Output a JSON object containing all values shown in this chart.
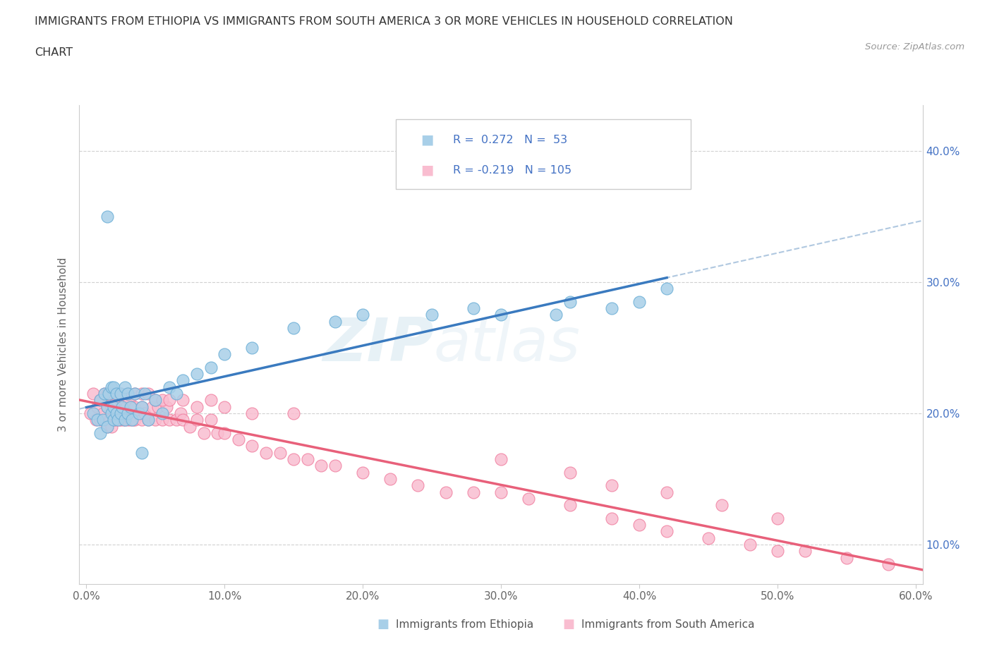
{
  "title_line1": "IMMIGRANTS FROM ETHIOPIA VS IMMIGRANTS FROM SOUTH AMERICA 3 OR MORE VEHICLES IN HOUSEHOLD CORRELATION",
  "title_line2": "CHART",
  "source_text": "Source: ZipAtlas.com",
  "ylabel": "3 or more Vehicles in Household",
  "xlim": [
    -0.005,
    0.605
  ],
  "ylim": [
    0.07,
    0.435
  ],
  "xticks": [
    0.0,
    0.1,
    0.2,
    0.3,
    0.4,
    0.5,
    0.6
  ],
  "xticklabels": [
    "0.0%",
    "10.0%",
    "20.0%",
    "30.0%",
    "40.0%",
    "50.0%",
    "60.0%"
  ],
  "yticks": [
    0.1,
    0.2,
    0.3,
    0.4
  ],
  "yticklabels": [
    "10.0%",
    "20.0%",
    "30.0%",
    "40.0%"
  ],
  "ethiopia_color": "#a8cfe8",
  "ethiopia_edge": "#6aaed6",
  "south_america_color": "#f9bdd0",
  "south_america_edge": "#f07fa0",
  "legend_R_ethiopia": "0.272",
  "legend_N_ethiopia": "53",
  "legend_R_south_america": "-0.219",
  "legend_N_south_america": "105",
  "trend_ethiopia_color": "#3a7abf",
  "trend_south_america_color": "#e8607a",
  "trend_ethiopia_dashed_color": "#a0bcd8",
  "watermark_zip": "ZIP",
  "watermark_atlas": "atlas",
  "legend_label_ethiopia": "Immigrants from Ethiopia",
  "legend_label_south_america": "Immigrants from South America",
  "ethiopia_x": [
    0.005,
    0.008,
    0.01,
    0.01,
    0.012,
    0.013,
    0.015,
    0.015,
    0.016,
    0.018,
    0.018,
    0.02,
    0.02,
    0.02,
    0.022,
    0.022,
    0.023,
    0.025,
    0.025,
    0.026,
    0.028,
    0.028,
    0.03,
    0.03,
    0.032,
    0.033,
    0.035,
    0.038,
    0.04,
    0.042,
    0.045,
    0.05,
    0.055,
    0.06,
    0.065,
    0.07,
    0.08,
    0.09,
    0.1,
    0.12,
    0.15,
    0.18,
    0.2,
    0.25,
    0.28,
    0.3,
    0.35,
    0.38,
    0.4,
    0.42,
    0.04,
    0.015,
    0.34
  ],
  "ethiopia_y": [
    0.2,
    0.195,
    0.21,
    0.185,
    0.195,
    0.215,
    0.205,
    0.19,
    0.215,
    0.2,
    0.22,
    0.195,
    0.205,
    0.22,
    0.2,
    0.215,
    0.195,
    0.2,
    0.215,
    0.205,
    0.195,
    0.22,
    0.2,
    0.215,
    0.205,
    0.195,
    0.215,
    0.2,
    0.205,
    0.215,
    0.195,
    0.21,
    0.2,
    0.22,
    0.215,
    0.225,
    0.23,
    0.235,
    0.245,
    0.25,
    0.265,
    0.27,
    0.275,
    0.275,
    0.28,
    0.275,
    0.285,
    0.28,
    0.285,
    0.295,
    0.17,
    0.35,
    0.275
  ],
  "south_america_x": [
    0.003,
    0.005,
    0.007,
    0.008,
    0.01,
    0.01,
    0.012,
    0.013,
    0.014,
    0.015,
    0.015,
    0.016,
    0.017,
    0.018,
    0.018,
    0.019,
    0.02,
    0.02,
    0.021,
    0.022,
    0.022,
    0.023,
    0.024,
    0.025,
    0.025,
    0.026,
    0.027,
    0.028,
    0.028,
    0.029,
    0.03,
    0.03,
    0.031,
    0.032,
    0.033,
    0.034,
    0.035,
    0.035,
    0.038,
    0.04,
    0.04,
    0.042,
    0.045,
    0.048,
    0.05,
    0.052,
    0.055,
    0.058,
    0.06,
    0.065,
    0.068,
    0.07,
    0.075,
    0.08,
    0.085,
    0.09,
    0.095,
    0.1,
    0.11,
    0.12,
    0.13,
    0.14,
    0.15,
    0.16,
    0.17,
    0.18,
    0.2,
    0.22,
    0.24,
    0.26,
    0.28,
    0.3,
    0.32,
    0.35,
    0.38,
    0.4,
    0.42,
    0.45,
    0.48,
    0.5,
    0.52,
    0.55,
    0.58,
    0.015,
    0.02,
    0.025,
    0.03,
    0.035,
    0.04,
    0.045,
    0.05,
    0.055,
    0.06,
    0.07,
    0.08,
    0.09,
    0.1,
    0.12,
    0.15,
    0.3,
    0.35,
    0.38,
    0.42,
    0.46,
    0.5
  ],
  "south_america_y": [
    0.2,
    0.215,
    0.195,
    0.205,
    0.21,
    0.195,
    0.2,
    0.215,
    0.195,
    0.205,
    0.19,
    0.21,
    0.195,
    0.205,
    0.19,
    0.21,
    0.195,
    0.205,
    0.2,
    0.195,
    0.21,
    0.2,
    0.195,
    0.21,
    0.195,
    0.205,
    0.195,
    0.21,
    0.195,
    0.205,
    0.2,
    0.195,
    0.21,
    0.195,
    0.205,
    0.195,
    0.195,
    0.205,
    0.2,
    0.195,
    0.205,
    0.2,
    0.195,
    0.205,
    0.195,
    0.205,
    0.195,
    0.205,
    0.195,
    0.195,
    0.2,
    0.195,
    0.19,
    0.195,
    0.185,
    0.195,
    0.185,
    0.185,
    0.18,
    0.175,
    0.17,
    0.17,
    0.165,
    0.165,
    0.16,
    0.16,
    0.155,
    0.15,
    0.145,
    0.14,
    0.14,
    0.14,
    0.135,
    0.13,
    0.12,
    0.115,
    0.11,
    0.105,
    0.1,
    0.095,
    0.095,
    0.09,
    0.085,
    0.215,
    0.215,
    0.215,
    0.215,
    0.215,
    0.215,
    0.215,
    0.21,
    0.21,
    0.21,
    0.21,
    0.205,
    0.21,
    0.205,
    0.2,
    0.2,
    0.165,
    0.155,
    0.145,
    0.14,
    0.13,
    0.12
  ]
}
